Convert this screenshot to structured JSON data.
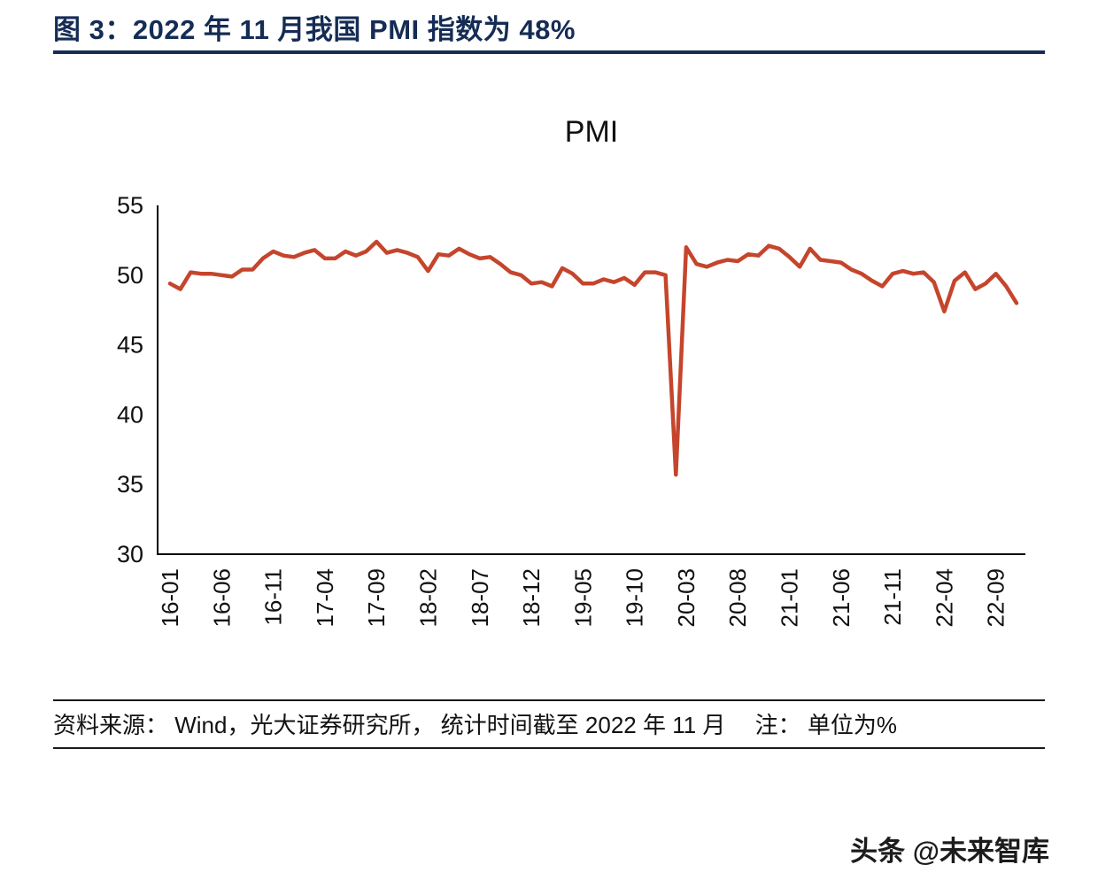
{
  "figure": {
    "title": "图 3：2022 年 11 月我国 PMI 指数为 48%"
  },
  "chart_data": {
    "type": "line",
    "title": "PMI",
    "series_name": "PMI",
    "unit": "%",
    "x_start": "2016-01",
    "x_end": "2022-11",
    "n_points": 83,
    "x_tick_step": 5,
    "x_tick_labels": [
      "16-01",
      "16-06",
      "16-11",
      "17-04",
      "17-09",
      "18-02",
      "18-07",
      "18-12",
      "19-05",
      "19-10",
      "20-03",
      "20-08",
      "21-01",
      "21-06",
      "21-11",
      "22-04",
      "22-09"
    ],
    "y_ticks": [
      55,
      50,
      45,
      40,
      35,
      30
    ],
    "ylim": [
      30,
      55
    ],
    "grid": false,
    "legend": "none",
    "values": [
      49.4,
      49.0,
      50.2,
      50.1,
      50.1,
      50.0,
      49.9,
      50.4,
      50.4,
      51.2,
      51.7,
      51.4,
      51.3,
      51.6,
      51.8,
      51.2,
      51.2,
      51.7,
      51.4,
      51.7,
      52.4,
      51.6,
      51.8,
      51.6,
      51.3,
      50.3,
      51.5,
      51.4,
      51.9,
      51.5,
      51.2,
      51.3,
      50.8,
      50.2,
      50.0,
      49.4,
      49.5,
      49.2,
      50.5,
      50.1,
      49.4,
      49.4,
      49.7,
      49.5,
      49.8,
      49.3,
      50.2,
      50.2,
      50.0,
      35.7,
      52.0,
      50.8,
      50.6,
      50.9,
      51.1,
      51.0,
      51.5,
      51.4,
      52.1,
      51.9,
      51.3,
      50.6,
      51.9,
      51.1,
      51.0,
      50.9,
      50.4,
      50.1,
      49.6,
      49.2,
      50.1,
      50.3,
      50.1,
      50.2,
      49.5,
      47.4,
      49.6,
      50.2,
      49.0,
      49.4,
      50.1,
      49.2,
      48.0
    ]
  },
  "colors": {
    "accent": "#152c55",
    "line": "#c5452c",
    "axis": "#000000"
  },
  "footer": {
    "source": "资料来源： Wind，光大证券研究所， 统计时间截至 2022 年 11 月　 注： 单位为%",
    "watermark": "头条 @未来智库"
  }
}
